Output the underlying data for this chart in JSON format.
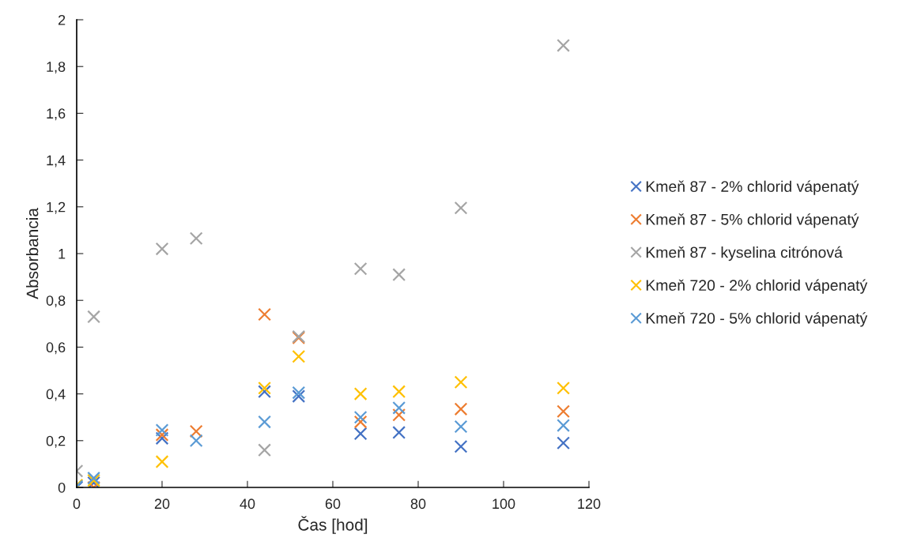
{
  "chart_data": {
    "type": "scatter",
    "xlabel": "Čas [hod]",
    "ylabel": "Absorbancia",
    "x": [
      0,
      4,
      20,
      28,
      44,
      52,
      66.5,
      75.5,
      90,
      114
    ],
    "xlim": [
      0,
      120
    ],
    "xticks": [
      0,
      20,
      40,
      60,
      80,
      100,
      120
    ],
    "ylim": [
      0,
      2
    ],
    "yticks": [
      {
        "value": 0,
        "label": "0"
      },
      {
        "value": 0.2,
        "label": "0,2"
      },
      {
        "value": 0.4,
        "label": "0,4"
      },
      {
        "value": 0.6,
        "label": "0,6"
      },
      {
        "value": 0.8,
        "label": "0,8"
      },
      {
        "value": 1,
        "label": "1"
      },
      {
        "value": 1.2,
        "label": "1,2"
      },
      {
        "value": 1.4,
        "label": "1,4"
      },
      {
        "value": 1.6,
        "label": "1,6"
      },
      {
        "value": 1.8,
        "label": "1,8"
      },
      {
        "value": 2,
        "label": "2"
      }
    ],
    "marker": "cross",
    "grid": false,
    "legend": "right",
    "series": [
      {
        "name": "Kmeň 87 - 2% chlorid vápenatý",
        "color": "#4472c4",
        "values": [
          0,
          0.02,
          0.21,
          null,
          0.41,
          0.39,
          0.23,
          0.235,
          0.175,
          0.19
        ]
      },
      {
        "name": "Kmeň 87 - 5% chlorid vápenatý",
        "color": "#ed7d31",
        "values": [
          null,
          0,
          0.225,
          0.24,
          0.74,
          0.64,
          0.28,
          0.31,
          0.335,
          0.325
        ]
      },
      {
        "name": "Kmeň 87 - kyselina citrónová",
        "color": "#a5a5a5",
        "values": [
          0.07,
          0.73,
          1.02,
          1.065,
          0.16,
          0.645,
          0.935,
          0.91,
          1.195,
          1.89
        ]
      },
      {
        "name": "Kmeň 720 - 2% chlorid vápenatý",
        "color": "#ffc000",
        "values": [
          0.01,
          0.03,
          0.11,
          null,
          0.425,
          0.56,
          0.4,
          0.41,
          0.45,
          0.425
        ]
      },
      {
        "name": "Kmeň 720 - 5% chlorid vápenatý",
        "color": "#5b9bd5",
        "values": [
          0.005,
          0.04,
          0.245,
          0.2,
          0.28,
          0.405,
          0.3,
          0.34,
          0.26,
          0.265
        ]
      }
    ]
  }
}
